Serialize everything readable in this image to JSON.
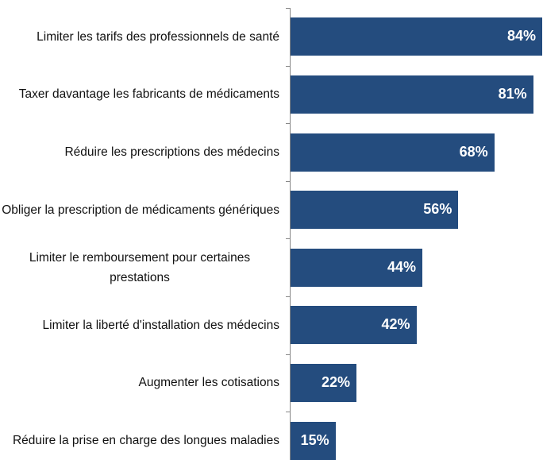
{
  "chart_data": {
    "type": "barh",
    "categories": [
      "Limiter les tarifs des professionnels de santé",
      "Taxer davantage les fabricants de médicaments",
      "Réduire les prescriptions des médecins",
      "Obliger la prescription de médicaments génériques",
      "Limiter le remboursement pour certaines prestations",
      "Limiter la liberté d'installation des médecins",
      "Augmenter les cotisations",
      "Réduire la prise en charge des longues maladies"
    ],
    "values": [
      84,
      81,
      68,
      56,
      44,
      42,
      22,
      15
    ],
    "value_labels": [
      "84%",
      "81%",
      "68%",
      "56%",
      "44%",
      "42%",
      "22%",
      "15%"
    ],
    "color": "#244c7e"
  }
}
